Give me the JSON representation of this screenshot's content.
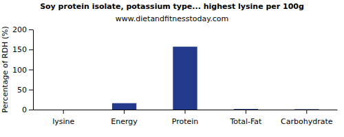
{
  "chart_data": {
    "type": "bar",
    "title": "Soy protein isolate, potassium type... highest lysine per 100g",
    "subtitle": "www.dietandfitnesstoday.com",
    "y_label": "Percentage of RDH (%)",
    "categories": [
      "lysine",
      "Energy",
      "Protein",
      "Total-Fat",
      "Carbohydrate"
    ],
    "values": [
      0,
      16,
      157,
      1.5,
      1
    ],
    "color": "#233a8c",
    "ylim": [
      0,
      200
    ],
    "yticks": [
      0,
      50,
      100,
      150,
      200
    ],
    "grid": false
  }
}
